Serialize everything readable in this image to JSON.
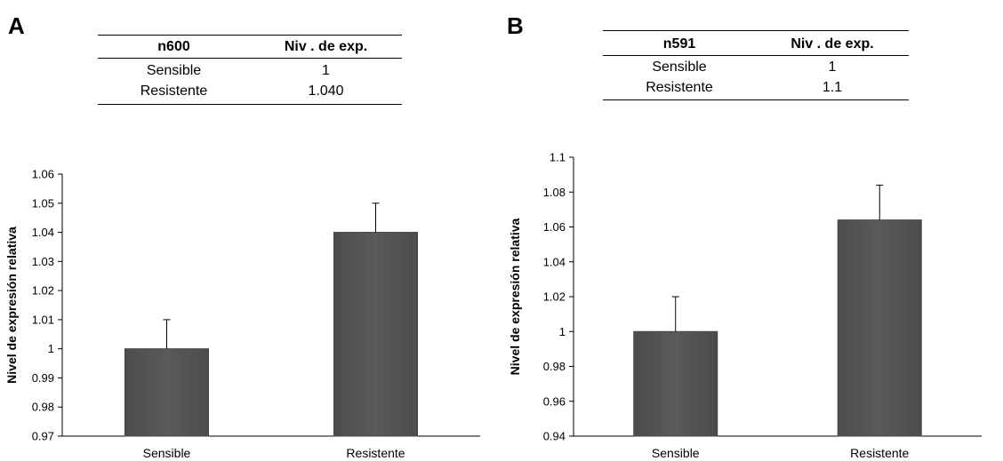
{
  "panels": [
    {
      "letter": "A",
      "table": {
        "headers": [
          "n600",
          "Niv . de exp."
        ],
        "rows": [
          [
            "Sensible",
            "1"
          ],
          [
            "Resistente",
            "1.040"
          ]
        ]
      }
    },
    {
      "letter": "B",
      "table": {
        "headers": [
          "n591",
          "Niv . de exp."
        ],
        "rows": [
          [
            "Sensible",
            "1"
          ],
          [
            "Resistente",
            "1.1"
          ]
        ]
      }
    }
  ],
  "chart_data": [
    {
      "type": "bar",
      "title": "",
      "xlabel": "",
      "ylabel": "Nivel de expresión relativa",
      "categories": [
        "Sensible",
        "Resistente"
      ],
      "values": [
        1.0,
        1.04
      ],
      "error_bars": [
        0.01,
        0.01
      ],
      "ylim": [
        0.97,
        1.06
      ],
      "yticks": [
        0.97,
        0.98,
        0.99,
        1.0,
        1.01,
        1.02,
        1.03,
        1.04,
        1.05,
        1.06
      ],
      "ytick_labels": [
        "0.97",
        "0.98",
        "0.99",
        "1",
        "1.01",
        "1.02",
        "1.03",
        "1.04",
        "1.05",
        "1.06"
      ],
      "grid": false,
      "bar_color": "#5a5a5a"
    },
    {
      "type": "bar",
      "title": "",
      "xlabel": "",
      "ylabel": "Nivel de expresión relativa",
      "categories": [
        "Sensible",
        "Resistente"
      ],
      "values": [
        1.0,
        1.064
      ],
      "error_bars": [
        0.02,
        0.02
      ],
      "ylim": [
        0.94,
        1.1
      ],
      "yticks": [
        0.94,
        0.96,
        0.98,
        1.0,
        1.02,
        1.04,
        1.06,
        1.08,
        1.1
      ],
      "ytick_labels": [
        "0.94",
        "0.96",
        "0.98",
        "1",
        "1.02",
        "1.04",
        "1.06",
        "1.08",
        "1.1"
      ],
      "grid": false,
      "bar_color": "#5a5a5a"
    }
  ]
}
